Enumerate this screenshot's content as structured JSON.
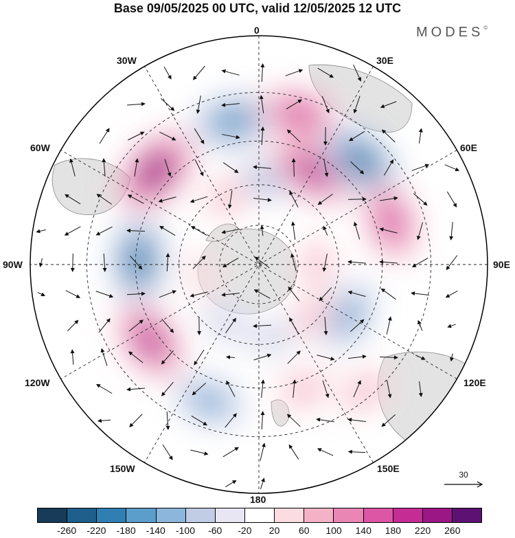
{
  "header": {
    "title": "Base 09/05/2025 00 UTC, valid 12/05/2025 12 UTC",
    "brand": "MODES",
    "brand_mark": "©"
  },
  "map": {
    "projection": "south-polar-stereographic",
    "longitude_labels": {
      "top": "0",
      "bottom": "180",
      "left": "90W",
      "right": "90E",
      "upper_left_1": "30W",
      "upper_left_2": "60W",
      "upper_right_1": "30E",
      "upper_right_2": "60E",
      "lower_left_1": "120W",
      "lower_left_2": "150W",
      "lower_right_1": "120E",
      "lower_right_2": "150E"
    },
    "land_color": "#e3e3e3",
    "ocean_color": "#ffffff",
    "anomalies": [
      {
        "lon": -10,
        "lat": -38,
        "value": -210
      },
      {
        "lon": 5,
        "lat": -58,
        "value": -120
      },
      {
        "lon": 15,
        "lat": -35,
        "value": 200
      },
      {
        "lon": 30,
        "lat": -50,
        "value": 240
      },
      {
        "lon": 45,
        "lat": -38,
        "value": -240
      },
      {
        "lon": 72,
        "lat": -40,
        "value": 200
      },
      {
        "lon": -48,
        "lat": -40,
        "value": 260
      },
      {
        "lon": -25,
        "lat": -62,
        "value": 60
      },
      {
        "lon": -88,
        "lat": -46,
        "value": -230
      },
      {
        "lon": -125,
        "lat": -42,
        "value": 220
      },
      {
        "lon": -160,
        "lat": -38,
        "value": -160
      },
      {
        "lon": 160,
        "lat": -42,
        "value": 80
      },
      {
        "lon": 140,
        "lat": -32,
        "value": 80
      },
      {
        "lon": 120,
        "lat": -52,
        "value": -170
      },
      {
        "lon": 135,
        "lat": -62,
        "value": 60
      },
      {
        "lon": 170,
        "lat": -62,
        "value": -60
      },
      {
        "lon": -150,
        "lat": -65,
        "value": -70
      },
      {
        "lon": 90,
        "lat": -68,
        "value": 60
      },
      {
        "lon": -100,
        "lat": -68,
        "value": 40
      }
    ]
  },
  "wind_reference": {
    "label": "30"
  },
  "colorbar": {
    "colors": [
      "#173b58",
      "#1e5f8c",
      "#2f7fb3",
      "#5b9dcb",
      "#8db6dc",
      "#c1cce5",
      "#e8e6f2",
      "#ffffff",
      "#fbdde1",
      "#f4b2c7",
      "#ea86b4",
      "#dd55a5",
      "#c52d95",
      "#9c1786",
      "#5d1173"
    ],
    "tick_labels": [
      "-260",
      "-220",
      "-180",
      "-140",
      "-100",
      "-60",
      "-20",
      "20",
      "60",
      "100",
      "140",
      "180",
      "220",
      "260"
    ]
  }
}
